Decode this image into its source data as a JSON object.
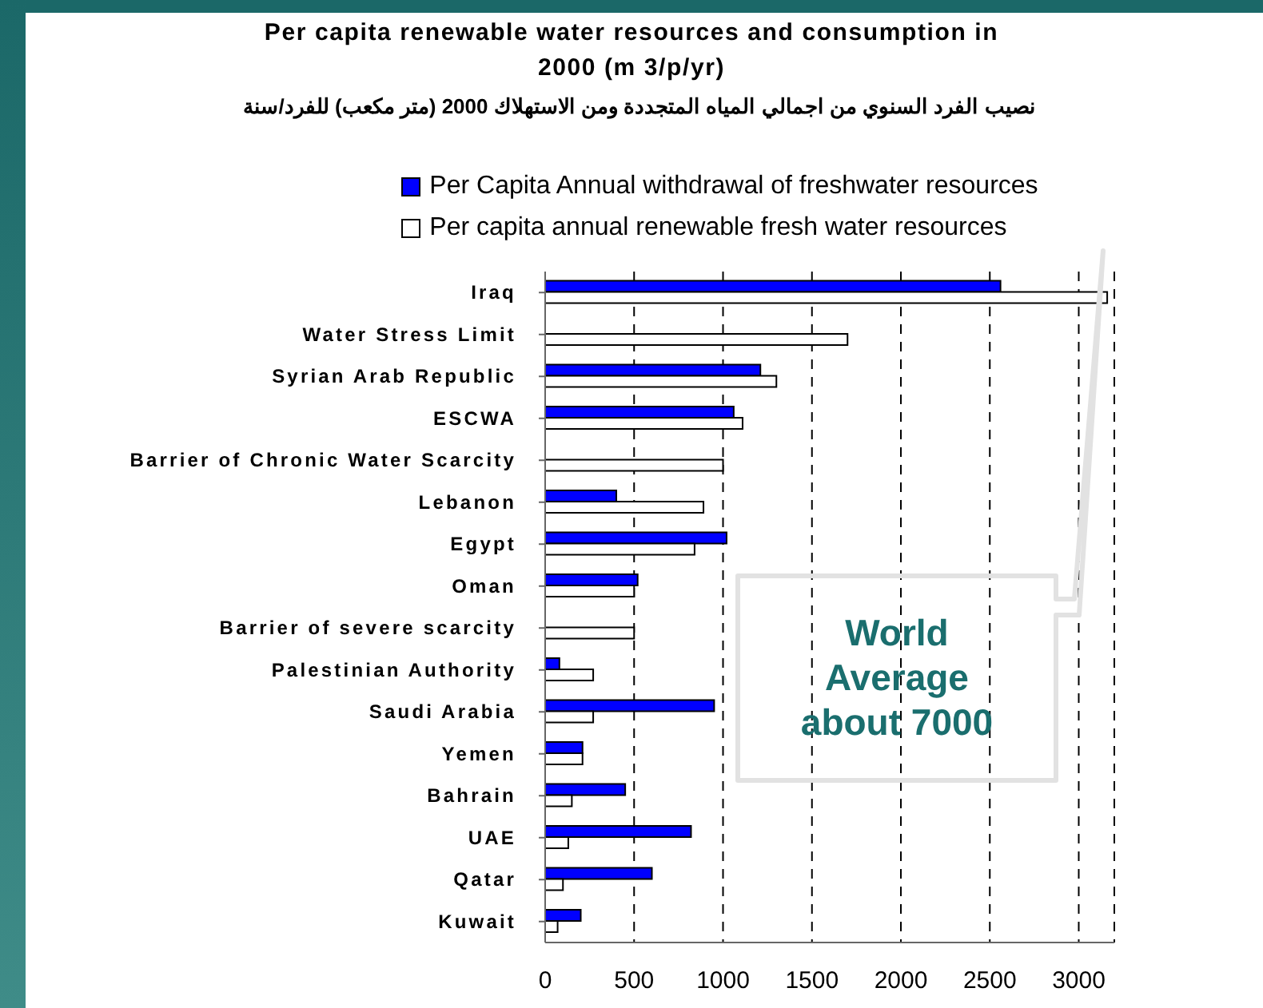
{
  "chart_data": {
    "type": "bar",
    "orientation": "horizontal",
    "title": "Per capita renewable water resources and consumption in 2000 (m 3/p/yr)",
    "subtitle": "نصيب الفرد السنوي من  اجمالي المياه المتجددة  ومن الاستهلاك  2000 (متر مكعب) للفرد/سنة",
    "categories": [
      "Iraq",
      "Water Stress Limit",
      "Syrian Arab Republic",
      "ESCWA",
      "Barrier of Chronic Water Scarcity",
      "Lebanon",
      "Egypt",
      "Oman",
      "Barrier of severe scarcity",
      "Palestinian Authority",
      "Saudi Arabia",
      "Yemen",
      "Bahrain",
      "UAE",
      "Qatar",
      "Kuwait"
    ],
    "series": [
      {
        "name": "Per Capita Annual  withdrawal of freshwater resources",
        "color": "#0000ff",
        "values": [
          2560,
          null,
          1210,
          1060,
          null,
          400,
          1020,
          520,
          null,
          80,
          950,
          210,
          450,
          820,
          600,
          200
        ]
      },
      {
        "name": "Per capita annual renewable fresh water resources",
        "color": "#ffffff",
        "values": [
          3160,
          1700,
          1300,
          1110,
          1000,
          890,
          840,
          500,
          500,
          270,
          270,
          210,
          150,
          130,
          100,
          70
        ]
      }
    ],
    "xlim": [
      0,
      3200
    ],
    "xticks": [
      0,
      500,
      1000,
      1500,
      2000,
      2500,
      3000
    ],
    "grid": "x",
    "legend": "top",
    "annotations": [
      "World Average about 7000"
    ]
  }
}
